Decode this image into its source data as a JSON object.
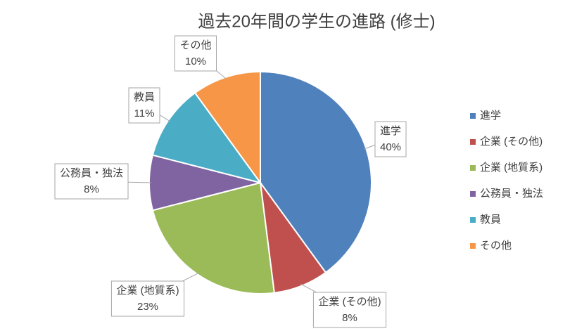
{
  "chart_data": {
    "type": "pie",
    "title": "過去20年間の学生の進路 (修士)",
    "categories": [
      "進学",
      "企業 (その他)",
      "企業 (地質系)",
      "公務員・独法",
      "教員",
      "その他"
    ],
    "values": [
      40,
      8,
      23,
      8,
      11,
      10
    ],
    "value_labels": [
      "40%",
      "8%",
      "23%",
      "8%",
      "11%",
      "10%"
    ],
    "colors": [
      "#4f81bd",
      "#c0504d",
      "#9bbb59",
      "#8064a2",
      "#4bacc6",
      "#f79646"
    ],
    "legend": "right"
  }
}
